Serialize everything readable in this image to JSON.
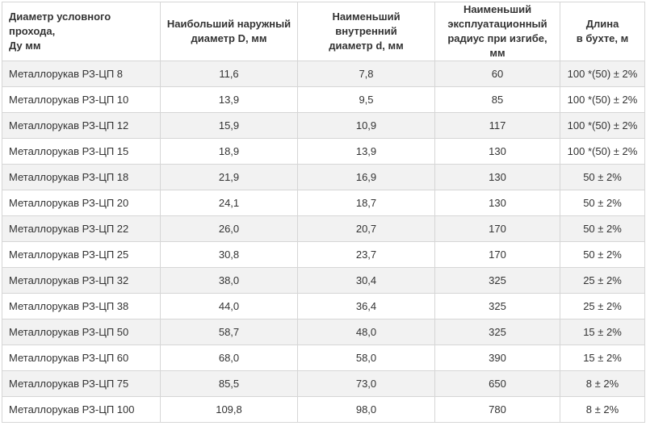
{
  "table": {
    "headers": [
      [
        "Диаметр условного прохода,",
        "Ду мм"
      ],
      [
        "Наибольший наружный",
        "диаметр D, мм"
      ],
      [
        "Наименьший внутренний",
        "диаметр d, мм"
      ],
      [
        "Наименьший",
        "эксплуатационный",
        "радиус при изгибе, мм"
      ],
      [
        "Длина",
        "в бухте, м"
      ]
    ],
    "rows": [
      [
        "Металлорукав РЗ-ЦП 8",
        "11,6",
        "7,8",
        "60",
        "100 *(50) ± 2%"
      ],
      [
        "Металлорукав РЗ-ЦП 10",
        "13,9",
        "9,5",
        "85",
        "100 *(50) ± 2%"
      ],
      [
        "Металлорукав РЗ-ЦП 12",
        "15,9",
        "10,9",
        "117",
        "100 *(50) ± 2%"
      ],
      [
        "Металлорукав РЗ-ЦП 15",
        "18,9",
        "13,9",
        "130",
        "100 *(50) ± 2%"
      ],
      [
        "Металлорукав РЗ-ЦП 18",
        "21,9",
        "16,9",
        "130",
        "50 ± 2%"
      ],
      [
        "Металлорукав РЗ-ЦП 20",
        "24,1",
        "18,7",
        "130",
        "50 ± 2%"
      ],
      [
        "Металлорукав РЗ-ЦП 22",
        "26,0",
        "20,7",
        "170",
        "50 ± 2%"
      ],
      [
        "Металлорукав РЗ-ЦП 25",
        "30,8",
        "23,7",
        "170",
        "50 ± 2%"
      ],
      [
        "Металлорукав РЗ-ЦП 32",
        "38,0",
        "30,4",
        "325",
        "25 ± 2%"
      ],
      [
        "Металлорукав РЗ-ЦП 38",
        "44,0",
        "36,4",
        "325",
        "25 ± 2%"
      ],
      [
        "Металлорукав РЗ-ЦП 50",
        "58,7",
        "48,0",
        "325",
        "15 ± 2%"
      ],
      [
        "Металлорукав РЗ-ЦП 60",
        "68,0",
        "58,0",
        "390",
        "15 ± 2%"
      ],
      [
        "Металлорукав РЗ-ЦП 75",
        "85,5",
        "73,0",
        "650",
        "8 ± 2%"
      ],
      [
        "Металлорукав РЗ-ЦП 100",
        "109,8",
        "98,0",
        "780",
        "8 ± 2%"
      ]
    ]
  }
}
